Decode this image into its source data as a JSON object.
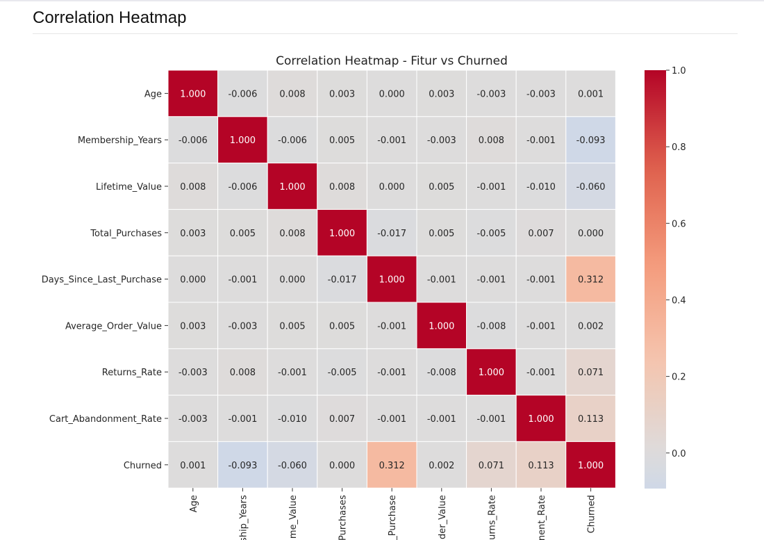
{
  "page": {
    "title": "Correlation Heatmap"
  },
  "chart_data": {
    "type": "heatmap",
    "title": "Correlation Heatmap - Fitur vs Churned",
    "row_labels": [
      "Age",
      "Membership_Years",
      "Lifetime_Value",
      "Total_Purchases",
      "Days_Since_Last_Purchase",
      "Average_Order_Value",
      "Returns_Rate",
      "Cart_Abandonment_Rate",
      "Churned"
    ],
    "col_labels_visible": [
      "Age",
      "ship_Years",
      "me_Value",
      "Purchases",
      "_Purchase",
      "der_Value",
      "urns_Rate",
      "nent_Rate",
      "Churned"
    ],
    "values": [
      [
        1.0,
        -0.006,
        0.008,
        0.003,
        0.0,
        0.003,
        -0.003,
        -0.003,
        0.001
      ],
      [
        -0.006,
        1.0,
        -0.006,
        0.005,
        -0.001,
        -0.003,
        0.008,
        -0.001,
        -0.093
      ],
      [
        0.008,
        -0.006,
        1.0,
        0.008,
        0.0,
        0.005,
        -0.001,
        -0.01,
        -0.06
      ],
      [
        0.003,
        0.005,
        0.008,
        1.0,
        -0.017,
        0.005,
        -0.005,
        0.007,
        0.0
      ],
      [
        0.0,
        -0.001,
        0.0,
        -0.017,
        1.0,
        -0.001,
        -0.001,
        -0.001,
        0.312
      ],
      [
        0.003,
        -0.003,
        0.005,
        0.005,
        -0.001,
        1.0,
        -0.008,
        -0.001,
        0.002
      ],
      [
        -0.003,
        0.008,
        -0.001,
        -0.005,
        -0.001,
        -0.008,
        1.0,
        -0.001,
        0.071
      ],
      [
        -0.003,
        -0.001,
        -0.01,
        0.007,
        -0.001,
        -0.001,
        -0.001,
        1.0,
        0.113
      ],
      [
        0.001,
        -0.093,
        -0.06,
        0.0,
        0.312,
        0.002,
        0.071,
        0.113,
        1.0
      ]
    ],
    "value_format_decimals": 3,
    "colormap": "coolwarm",
    "colormap_center": 0,
    "colorbar": {
      "min": -0.093,
      "max": 1.0,
      "ticks": [
        "0.0",
        "0.2",
        "0.4",
        "0.6",
        "0.8",
        "1.0"
      ]
    },
    "grid_lines": "white"
  }
}
